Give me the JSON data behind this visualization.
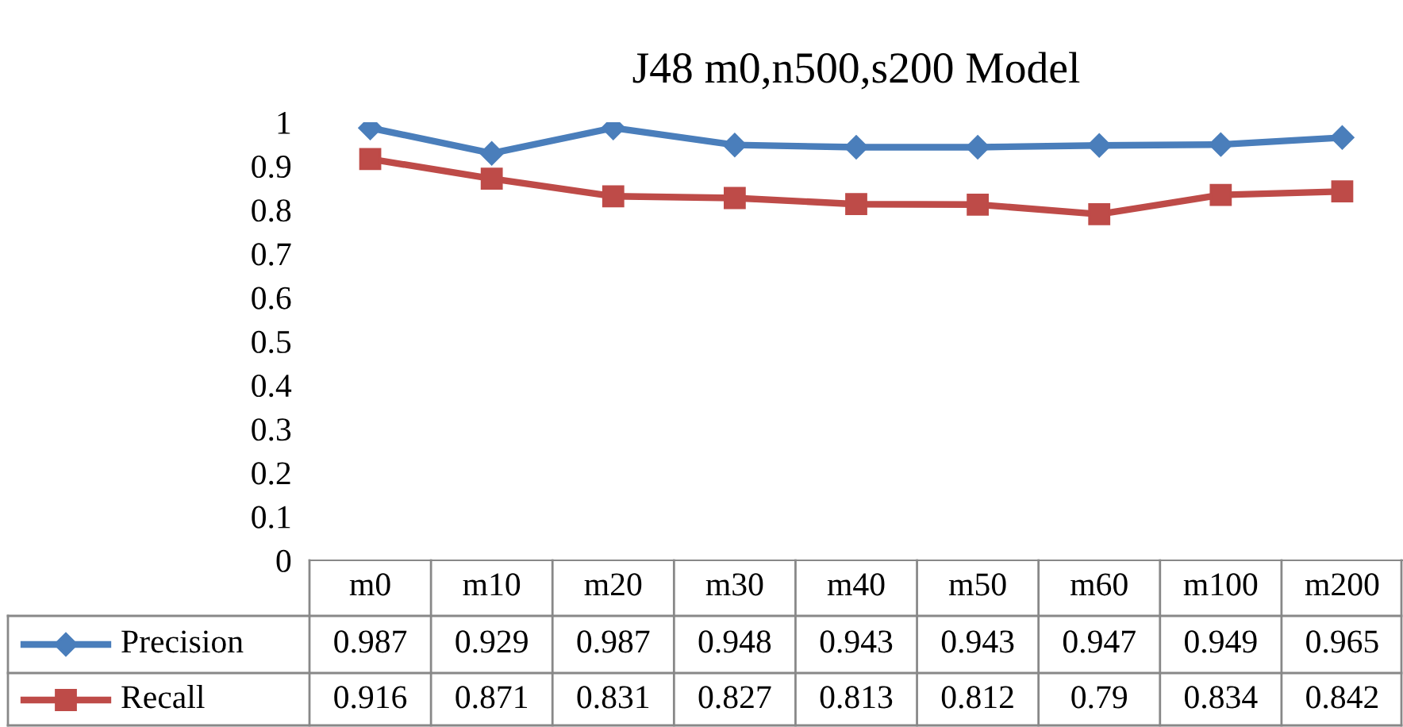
{
  "chart_data": {
    "type": "line",
    "title": "J48 m0,n500,s200 Model",
    "categories": [
      "m0",
      "m10",
      "m20",
      "m30",
      "m40",
      "m50",
      "m60",
      "m100",
      "m200"
    ],
    "series": [
      {
        "name": "Precision",
        "color": "#4a7ebb",
        "marker": "diamond",
        "values": [
          0.987,
          0.929,
          0.987,
          0.948,
          0.943,
          0.943,
          0.947,
          0.949,
          0.965
        ]
      },
      {
        "name": "Recall",
        "color": "#be4b48",
        "marker": "square",
        "values": [
          0.916,
          0.871,
          0.831,
          0.827,
          0.813,
          0.812,
          0.79,
          0.834,
          0.842
        ]
      }
    ],
    "ylim": [
      0,
      1
    ],
    "yticks": [
      0,
      0.1,
      0.2,
      0.3,
      0.4,
      0.5,
      0.6,
      0.7,
      0.8,
      0.9,
      1
    ],
    "grid": false,
    "legend": "bottom",
    "data_labels": true,
    "line_style": "solid"
  }
}
